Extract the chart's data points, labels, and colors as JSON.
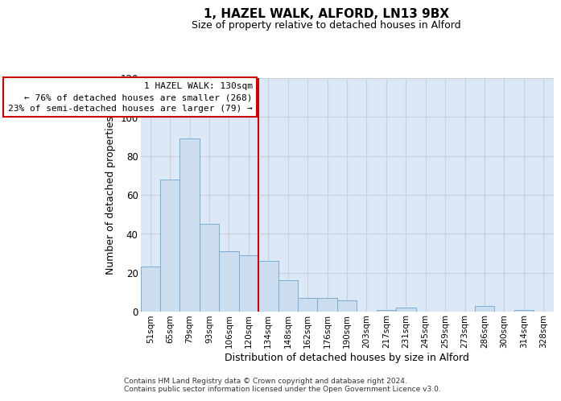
{
  "title": "1, HAZEL WALK, ALFORD, LN13 9BX",
  "subtitle": "Size of property relative to detached houses in Alford",
  "xlabel": "Distribution of detached houses by size in Alford",
  "ylabel": "Number of detached properties",
  "bar_labels": [
    "51sqm",
    "65sqm",
    "79sqm",
    "93sqm",
    "106sqm",
    "120sqm",
    "134sqm",
    "148sqm",
    "162sqm",
    "176sqm",
    "190sqm",
    "203sqm",
    "217sqm",
    "231sqm",
    "245sqm",
    "259sqm",
    "273sqm",
    "286sqm",
    "300sqm",
    "314sqm",
    "328sqm"
  ],
  "bar_values": [
    23,
    68,
    89,
    45,
    31,
    29,
    26,
    16,
    7,
    7,
    6,
    0,
    1,
    2,
    0,
    0,
    0,
    3,
    0,
    1,
    0
  ],
  "bar_color": "#ccddf0",
  "bar_edgecolor": "#7aadd4",
  "red_line_index": 6,
  "annotation_line1": "1 HAZEL WALK: 130sqm",
  "annotation_line2": "← 76% of detached houses are smaller (268)",
  "annotation_line3": "23% of semi-detached houses are larger (79) →",
  "annotation_box_facecolor": "#ffffff",
  "annotation_box_edgecolor": "#cc0000",
  "red_line_color": "#cc0000",
  "ylim": [
    0,
    120
  ],
  "yticks": [
    0,
    20,
    40,
    60,
    80,
    100,
    120
  ],
  "grid_color": "#c8d0dc",
  "bg_color": "#dce8f5",
  "footer1": "Contains HM Land Registry data © Crown copyright and database right 2024.",
  "footer2": "Contains public sector information licensed under the Open Government Licence v3.0."
}
